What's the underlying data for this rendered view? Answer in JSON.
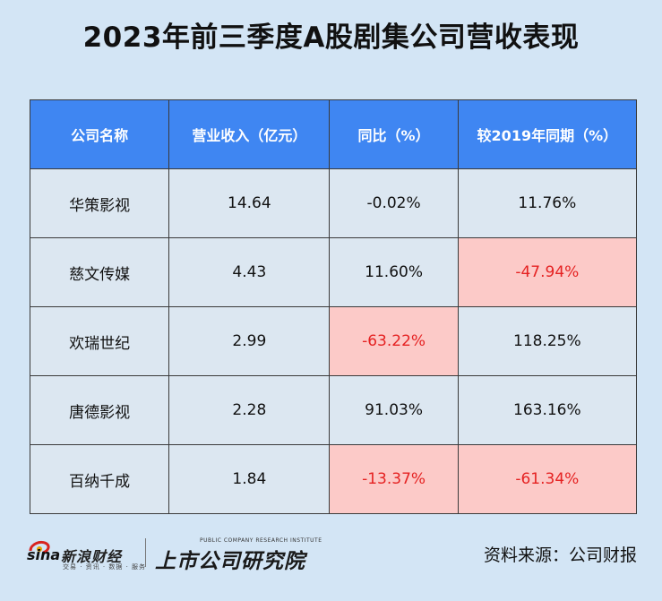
{
  "chart_data": {
    "type": "table",
    "title": "2023年前三季度A股剧集公司营收表现",
    "columns": [
      "公司名称",
      "营业收入（亿元）",
      "同比（%）",
      "较2019年同期（%）"
    ],
    "rows": [
      {
        "company": "华策影视",
        "revenue": "14.64",
        "yoy": "-0.02%",
        "vs2019": "11.76%",
        "yoy_highlight": false,
        "vs2019_highlight": false
      },
      {
        "company": "慈文传媒",
        "revenue": "4.43",
        "yoy": "11.60%",
        "vs2019": "-47.94%",
        "yoy_highlight": false,
        "vs2019_highlight": true
      },
      {
        "company": "欢瑞世纪",
        "revenue": "2.99",
        "yoy": "-63.22%",
        "vs2019": "118.25%",
        "yoy_highlight": true,
        "vs2019_highlight": false
      },
      {
        "company": "唐德影视",
        "revenue": "2.28",
        "yoy": "91.03%",
        "vs2019": "163.16%",
        "yoy_highlight": false,
        "vs2019_highlight": false
      },
      {
        "company": "百纳千成",
        "revenue": "1.84",
        "yoy": "-13.37%",
        "vs2019": "-61.34%",
        "yoy_highlight": true,
        "vs2019_highlight": true
      }
    ],
    "colors": {
      "background": "#d3e5f5",
      "header": "#3f86f2",
      "cell": "#dce7f1",
      "negative_highlight_bg": "#fccac8",
      "negative_text": "#e52222"
    }
  },
  "footer": {
    "sina_word": "sina",
    "sina_cn": "新浪财经",
    "sina_tags": "交易 · 资讯 · 数据 · 服务",
    "institute_en": "PUBLIC COMPANY RESEARCH INSTITUTE",
    "institute_cn": "上市公司研究院",
    "source": "资料来源：公司财报"
  }
}
